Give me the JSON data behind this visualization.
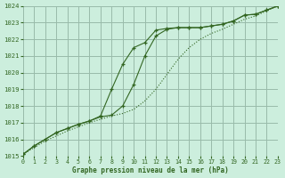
{
  "title": "Graphe pression niveau de la mer (hPa)",
  "bg_color": "#cceedd",
  "grid_color": "#99bbaa",
  "line_color": "#336622",
  "xlim": [
    0,
    23
  ],
  "ylim": [
    1015,
    1024
  ],
  "yticks": [
    1015,
    1016,
    1017,
    1018,
    1019,
    1020,
    1021,
    1022,
    1023,
    1024
  ],
  "xticks": [
    0,
    1,
    2,
    3,
    4,
    5,
    6,
    7,
    8,
    9,
    10,
    11,
    12,
    13,
    14,
    15,
    16,
    17,
    18,
    19,
    20,
    21,
    22,
    23
  ],
  "series1": [
    1015.1,
    1015.6,
    1016.0,
    1016.4,
    1016.65,
    1016.9,
    1017.1,
    1017.4,
    1019.0,
    1020.5,
    1021.5,
    1021.8,
    1022.55,
    1022.65,
    1022.7,
    1022.7,
    1022.7,
    1022.8,
    1022.9,
    1023.1,
    1023.45,
    1023.5,
    1023.75,
    1024.0
  ],
  "series2": [
    1015.1,
    1015.6,
    1016.0,
    1016.4,
    1016.65,
    1016.9,
    1017.1,
    1017.35,
    1017.45,
    1018.0,
    1019.3,
    1021.0,
    1022.2,
    1022.6,
    1022.7,
    1022.7,
    1022.7,
    1022.8,
    1022.9,
    1023.1,
    1023.45,
    1023.5,
    1023.75,
    1024.0
  ],
  "series3": [
    1015.1,
    1015.5,
    1015.9,
    1016.2,
    1016.5,
    1016.75,
    1017.0,
    1017.2,
    1017.4,
    1017.55,
    1017.8,
    1018.3,
    1019.0,
    1019.9,
    1020.8,
    1021.5,
    1022.0,
    1022.35,
    1022.6,
    1022.9,
    1023.2,
    1023.4,
    1023.7,
    1024.0
  ]
}
